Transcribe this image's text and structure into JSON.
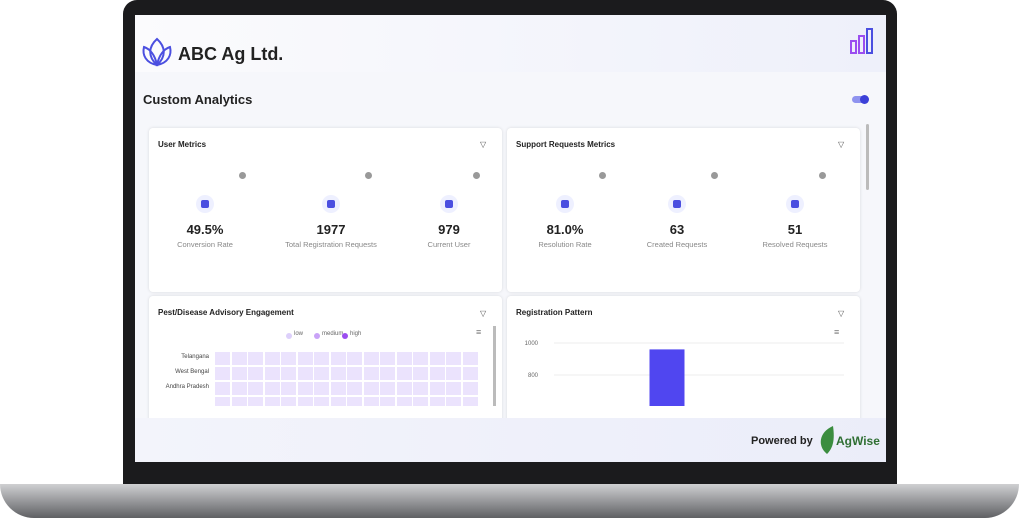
{
  "header": {
    "brand": "ABC Ag Ltd."
  },
  "page_title": "Custom Analytics",
  "cards": [
    {
      "title": "User Metrics",
      "metrics": [
        {
          "value": "49.5%",
          "label": "Conversion Rate"
        },
        {
          "value": "1977",
          "label": "Total Registration Requests"
        },
        {
          "value": "979",
          "label": "Current User"
        }
      ]
    },
    {
      "title": "Support Requests Metrics",
      "metrics": [
        {
          "value": "81.0%",
          "label": "Resolution Rate"
        },
        {
          "value": "63",
          "label": "Created Requests"
        },
        {
          "value": "51",
          "label": "Resolved Requests"
        }
      ]
    }
  ],
  "heatmap": {
    "title": "Pest/Disease Advisory Engagement",
    "legend": [
      "low",
      "medium",
      "high"
    ],
    "legend_colors": [
      "#ddd0fb",
      "#c9a3f7",
      "#9b4ef0"
    ],
    "rows": [
      "Telangana",
      "West Bengal",
      "Andhra Pradesh"
    ]
  },
  "chart_data": {
    "type": "bar",
    "title": "Registration Pattern",
    "categories": [
      null
    ],
    "values": [
      960
    ],
    "color": "#5046f0",
    "ylim": [
      0,
      1100
    ],
    "yticks": [
      800,
      1000
    ],
    "grid": true
  },
  "footer": {
    "powered_by": "Powered by",
    "brand": "AgWise"
  }
}
